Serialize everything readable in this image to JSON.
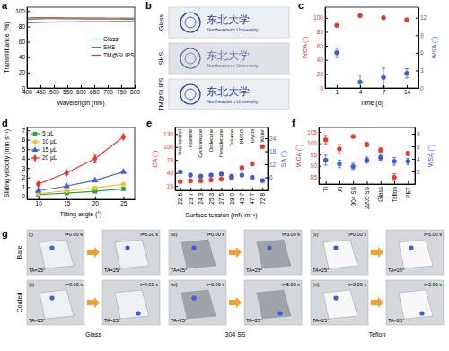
{
  "chart_data": [
    {
      "panel": "a",
      "type": "line",
      "x_label": "Wavelength (nm)",
      "y_label": "Transmittance (%)",
      "x": [
        400,
        425,
        450,
        475,
        500,
        525,
        550,
        575,
        600,
        625,
        650,
        675,
        700,
        725,
        750,
        775,
        800
      ],
      "xlim": [
        400,
        800
      ],
      "xticks": [
        400,
        450,
        500,
        550,
        600,
        650,
        700,
        750,
        800
      ],
      "ylim": [
        0,
        105
      ],
      "yticks": [
        0,
        20,
        40,
        60,
        80,
        100
      ],
      "legend": "right",
      "series": [
        {
          "name": "Glass",
          "color": "#2fae6a",
          "values": [
            91.2,
            91.4,
            91.5,
            91.5,
            91.4,
            91.4,
            91.3,
            91.3,
            91.2,
            91.2,
            91.1,
            91.1,
            91.0,
            91.0,
            90.9,
            90.9,
            90.8
          ]
        },
        {
          "name": "SHS",
          "color": "#4a7bd4",
          "values": [
            84.5,
            85.0,
            85.3,
            85.5,
            85.7,
            85.8,
            85.9,
            86.0,
            86.1,
            86.2,
            86.2,
            86.3,
            86.3,
            86.4,
            86.4,
            86.5,
            86.5
          ]
        },
        {
          "name": "TM@SLIPS",
          "color": "#e8372b",
          "values": [
            89.5,
            89.8,
            90.0,
            90.1,
            90.1,
            90.0,
            90.0,
            89.9,
            89.9,
            89.8,
            89.8,
            89.7,
            89.7,
            89.6,
            89.6,
            89.5,
            89.5
          ]
        }
      ]
    },
    {
      "panel": "c",
      "type": "scatter",
      "x_label": "Time (d)",
      "y_label": "WCA (°)",
      "y2_label": "WSA (°)",
      "categories": [
        "1",
        "4",
        "7",
        "14"
      ],
      "ylim": [
        0,
        115
      ],
      "yticks": [
        0,
        20,
        40,
        60,
        80,
        100
      ],
      "y2lim": [
        0,
        13.8
      ],
      "y2ticks": [
        0,
        3,
        6,
        9,
        12
      ],
      "series": [
        {
          "color": "#e8372b",
          "marker": "circle",
          "values": [
            89,
            103,
            100,
            97
          ],
          "errors": [
            1.5,
            1.2,
            1.5,
            1.5
          ]
        },
        {
          "color": "#3b5bdb",
          "marker": "circle",
          "axis": "y2",
          "values": [
            6,
            1.0,
            1.8,
            2.5
          ],
          "errors": [
            0.8,
            1.2,
            1.6,
            0.8
          ]
        }
      ]
    },
    {
      "panel": "d",
      "type": "line",
      "x_label": "Tilting angle (°)",
      "y_label": "Sliding velocity (mm s⁻¹)",
      "x": [
        10,
        15,
        20,
        25
      ],
      "xlim": [
        8,
        27
      ],
      "xticks": [
        10,
        15,
        20,
        25
      ],
      "ylim": [
        -0.3,
        7.3
      ],
      "yticks": [
        0,
        1,
        2,
        3,
        4,
        5,
        6,
        7
      ],
      "legend": "upper left",
      "series": [
        {
          "name": "5 μL",
          "color": "#2aa34a",
          "marker": "square",
          "values": [
            0.2,
            0.35,
            0.55,
            0.8
          ]
        },
        {
          "name": "10 μL",
          "color": "#f2c12e",
          "marker": "circle",
          "values": [
            0.3,
            0.6,
            0.9,
            1.3
          ]
        },
        {
          "name": "15 μL",
          "color": "#3a5fd9",
          "marker": "triangle",
          "values": [
            0.6,
            1.1,
            1.7,
            2.6
          ]
        },
        {
          "name": "20 μL",
          "color": "#e8372b",
          "marker": "diamond",
          "values": [
            1.3,
            2.5,
            4.0,
            6.3
          ],
          "errors": [
            0.1,
            0.15,
            0.45,
            0.15
          ]
        }
      ]
    },
    {
      "panel": "e",
      "type": "scatter",
      "x_label": "Surface tension (mN m⁻¹)",
      "y_label": "CA (°)",
      "y2_label": "SA (°)",
      "categories": [
        "22.6",
        "23.7",
        "24.3",
        "25.3",
        "27.5",
        "28.0",
        "43.7",
        "47.7",
        "72.8"
      ],
      "liquids": [
        "Isopropanol",
        "Acetone",
        "Cyclohexane",
        "Dodecane",
        "Hexadecane",
        "Toluene",
        "DMSO",
        "Glycol",
        "Water"
      ],
      "ylim": [
        0,
        145
      ],
      "yticks": [
        10,
        40,
        70,
        100,
        130
      ],
      "y2lim": [
        0,
        29
      ],
      "y2ticks": [
        6,
        12,
        18,
        24
      ],
      "series": [
        {
          "color": "#e8372b",
          "marker": "circle",
          "values": [
            20,
            22,
            22,
            24,
            26,
            29,
            52,
            61,
            101
          ],
          "errors": [
            2,
            2,
            2,
            2,
            2,
            2,
            3,
            3,
            3
          ]
        },
        {
          "color": "#3b5bdb",
          "marker": "circle",
          "axis": "y2",
          "values": [
            8.5,
            7,
            6.5,
            7,
            7.5,
            6.5,
            7,
            6,
            4.5
          ],
          "errors": [
            0.6,
            0.5,
            0.5,
            0.5,
            0.6,
            0.5,
            0.6,
            0.5,
            0.5
          ]
        }
      ]
    },
    {
      "panel": "f",
      "type": "scatter",
      "y_label": "WCA (°)",
      "y2_label": "WSA (°)",
      "categories": [
        "Ti",
        "Al",
        "304 SS",
        "2205 SS",
        "Glass",
        "Teflon",
        "PET"
      ],
      "ylim": [
        82,
        107
      ],
      "yticks": [
        85,
        90,
        95,
        100,
        105
      ],
      "y2lim": [
        0,
        9
      ],
      "y2ticks": [
        2,
        4,
        6,
        8
      ],
      "series": [
        {
          "color": "#e8372b",
          "marker": "circle",
          "values": [
            101.5,
            97.5,
            103,
            99.5,
            97,
            85,
            95.5
          ],
          "errors": [
            2,
            2,
            0.5,
            1,
            1,
            1.5,
            1
          ]
        },
        {
          "color": "#3b5bdb",
          "marker": "circle",
          "axis": "y2",
          "values": [
            3.8,
            3.2,
            2.8,
            3.8,
            4.2,
            3.6,
            3.6
          ],
          "errors": [
            0.8,
            0.6,
            0.5,
            0.5,
            0.4,
            0.6,
            0.5
          ]
        }
      ]
    }
  ],
  "photos_b": {
    "panel": "b",
    "rows": [
      "Glass",
      "SHS",
      "TM@SLIPS"
    ],
    "logo_cn": "东北大学",
    "logo_en": "Northeastern University"
  },
  "photos_g": {
    "panel": "g",
    "rows": [
      "Bare",
      "Coated"
    ],
    "columns": [
      "Glass",
      "304 SS",
      "Teflon"
    ],
    "tilt": "TA=25°",
    "panels": [
      [
        {
          "id": "(i)",
          "start": "t=0.00 s",
          "end": "t=5.00 s"
        },
        {
          "id": "(iii)",
          "start": "t=0.00 s",
          "end": "t=3.00 s"
        },
        {
          "id": "(v)",
          "start": "t=0.00 s",
          "end": "t=5.00 s"
        }
      ],
      [
        {
          "id": "(ii)",
          "start": "t=0.00 s",
          "end": "t=4.00 s"
        },
        {
          "id": "(iv)",
          "start": "t=0.00 s",
          "end": "t=5.00 s"
        },
        {
          "id": "(vi)",
          "start": "t=0.00 s",
          "end": "t=2.00 s"
        }
      ]
    ]
  }
}
